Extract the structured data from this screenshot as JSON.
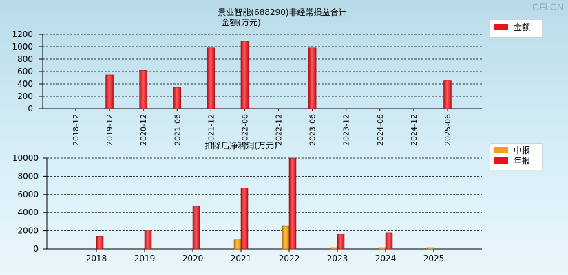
{
  "watermark": "CFi.CN",
  "chart_data": [
    {
      "type": "bar",
      "title": "景业智能(688290)非经常损益合计",
      "subtitle": "金额(万元)",
      "categories": [
        "2018-12",
        "2019-12",
        "2020-12",
        "2021-06",
        "2021-12",
        "2022-06",
        "2022-12",
        "2023-06",
        "2023-12",
        "2024-06",
        "2024-12",
        "2025-06"
      ],
      "series": [
        {
          "name": "金额",
          "color": "#e8141b",
          "values": [
            null,
            545,
            620,
            340,
            980,
            1090,
            null,
            980,
            null,
            null,
            null,
            450
          ]
        }
      ],
      "ylim": [
        0,
        1200
      ],
      "yticks": [
        0,
        200,
        400,
        600,
        800,
        1000,
        1200
      ],
      "grid": true,
      "legend": "top-right"
    },
    {
      "type": "bar",
      "title": "扣除后净利润(万元)",
      "categories": [
        "2018",
        "2019",
        "2020",
        "2021",
        "2022",
        "2023",
        "2024",
        "2025"
      ],
      "series": [
        {
          "name": "中报",
          "color": "#f6a01a",
          "values": [
            null,
            null,
            null,
            1000,
            2500,
            150,
            150,
            150
          ]
        },
        {
          "name": "年报",
          "color": "#e8141b",
          "values": [
            1350,
            2100,
            4700,
            6700,
            10000,
            1650,
            1750,
            null
          ]
        }
      ],
      "ylim": [
        0,
        10000
      ],
      "yticks": [
        0,
        2000,
        4000,
        6000,
        8000,
        10000
      ],
      "grid": true,
      "legend": "top-right"
    }
  ]
}
